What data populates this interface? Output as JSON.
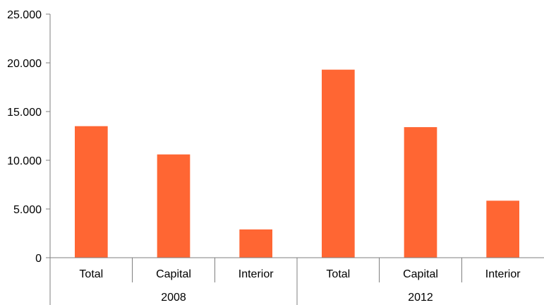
{
  "chart_data": {
    "type": "bar",
    "title": "",
    "xlabel": "",
    "ylabel": "",
    "ylim": [
      0,
      25000
    ],
    "yticks": [
      0,
      5000,
      10000,
      15000,
      20000,
      25000
    ],
    "ytick_labels": [
      "0",
      "5.000",
      "10.000",
      "15.000",
      "20.000",
      "25.000"
    ],
    "grid": false,
    "legend": "none",
    "groups": [
      {
        "label": "2008",
        "categories": [
          "Total",
          "Capital",
          "Interior"
        ],
        "values": [
          13500,
          10600,
          2900
        ]
      },
      {
        "label": "2012",
        "categories": [
          "Total",
          "Capital",
          "Interior"
        ],
        "values": [
          19300,
          13400,
          5850
        ]
      }
    ],
    "colors": {
      "bar": "#ff6633",
      "axis": "#7f7f7f",
      "text": "#000000"
    }
  }
}
